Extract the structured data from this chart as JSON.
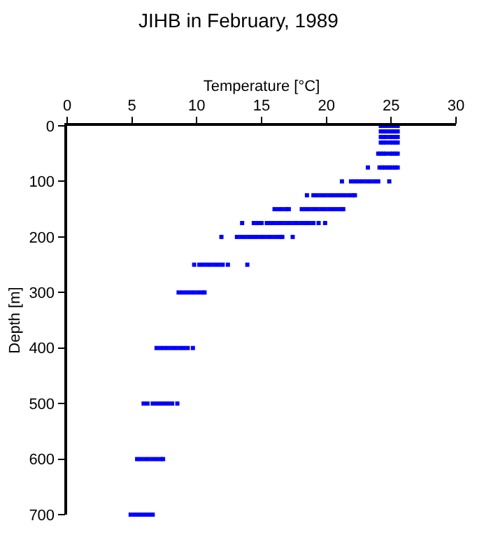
{
  "chart_data": {
    "type": "scatter",
    "title": "JIHB in February, 1989",
    "xlabel": "Temperature [°C]",
    "ylabel": "Depth [m]",
    "xlim": [
      0,
      30
    ],
    "xticks": [
      0,
      5,
      10,
      15,
      20,
      25,
      30
    ],
    "ylim": [
      700,
      0
    ],
    "yticks": [
      0,
      100,
      200,
      300,
      400,
      500,
      600,
      700
    ],
    "marker": "square",
    "series": [
      {
        "color": "#0000ff",
        "x": [
          24.2,
          24.4,
          24.6,
          24.9,
          25.1,
          25.3,
          25.5,
          24.2,
          24.4,
          24.6,
          24.9,
          25.1,
          25.3,
          25.5,
          24.2,
          24.4,
          24.6,
          24.9,
          25.1,
          25.3,
          25.5,
          24.2,
          24.4,
          24.6,
          24.9,
          25.1,
          25.3,
          25.5,
          24.0,
          24.2,
          24.4,
          24.6,
          24.9,
          25.1,
          25.3,
          25.5,
          23.2,
          24.1,
          24.3,
          24.5,
          24.7,
          24.9,
          25.1,
          25.3,
          25.5,
          21.2,
          21.9,
          22.2,
          22.5,
          22.8,
          23.1,
          23.4,
          23.7,
          24.0,
          24.85,
          18.5,
          19.0,
          19.3,
          19.6,
          19.9,
          20.2,
          20.5,
          20.8,
          21.1,
          21.4,
          21.7,
          22.0,
          22.2,
          16.0,
          16.3,
          16.6,
          16.9,
          17.1,
          18.1,
          18.4,
          18.7,
          19.0,
          19.3,
          19.6,
          19.9,
          20.2,
          20.5,
          20.8,
          21.1,
          21.3,
          13.5,
          14.4,
          14.7,
          15.0,
          15.4,
          15.7,
          16.0,
          16.3,
          16.6,
          16.9,
          17.2,
          17.5,
          17.8,
          18.1,
          18.4,
          18.7,
          19.0,
          19.4,
          19.9,
          11.9,
          13.1,
          13.4,
          13.7,
          14.0,
          14.3,
          14.6,
          14.9,
          15.2,
          15.5,
          15.8,
          16.1,
          16.4,
          16.6,
          17.4,
          9.8,
          10.2,
          10.5,
          10.8,
          11.1,
          11.4,
          11.7,
          12.0,
          12.4,
          13.9,
          8.6,
          8.9,
          9.2,
          9.5,
          9.8,
          10.1,
          10.4,
          10.6,
          6.9,
          7.2,
          7.5,
          7.8,
          8.1,
          8.4,
          8.7,
          9.0,
          9.3,
          9.7,
          5.9,
          6.2,
          6.6,
          6.9,
          7.2,
          7.5,
          7.8,
          8.1,
          8.5,
          5.4,
          5.7,
          6.0,
          6.3,
          6.6,
          6.9,
          7.2,
          7.4,
          4.9,
          5.2,
          5.5,
          5.8,
          6.1,
          6.4,
          6.6
        ],
        "values": [
          0,
          0,
          0,
          0,
          0,
          0,
          0,
          10,
          10,
          10,
          10,
          10,
          10,
          10,
          20,
          20,
          20,
          20,
          20,
          20,
          20,
          30,
          30,
          30,
          30,
          30,
          30,
          30,
          50,
          50,
          50,
          50,
          50,
          50,
          50,
          50,
          75,
          75,
          75,
          75,
          75,
          75,
          75,
          75,
          75,
          100,
          100,
          100,
          100,
          100,
          100,
          100,
          100,
          100,
          100,
          125,
          125,
          125,
          125,
          125,
          125,
          125,
          125,
          125,
          125,
          125,
          125,
          125,
          150,
          150,
          150,
          150,
          150,
          150,
          150,
          150,
          150,
          150,
          150,
          150,
          150,
          150,
          150,
          150,
          150,
          175,
          175,
          175,
          175,
          175,
          175,
          175,
          175,
          175,
          175,
          175,
          175,
          175,
          175,
          175,
          175,
          175,
          175,
          175,
          200,
          200,
          200,
          200,
          200,
          200,
          200,
          200,
          200,
          200,
          200,
          200,
          200,
          200,
          200,
          250,
          250,
          250,
          250,
          250,
          250,
          250,
          250,
          250,
          250,
          300,
          300,
          300,
          300,
          300,
          300,
          300,
          300,
          400,
          400,
          400,
          400,
          400,
          400,
          400,
          400,
          400,
          400,
          500,
          500,
          500,
          500,
          500,
          500,
          500,
          500,
          500,
          600,
          600,
          600,
          600,
          600,
          600,
          600,
          600,
          700,
          700,
          700,
          700,
          700,
          700,
          700
        ]
      }
    ]
  }
}
